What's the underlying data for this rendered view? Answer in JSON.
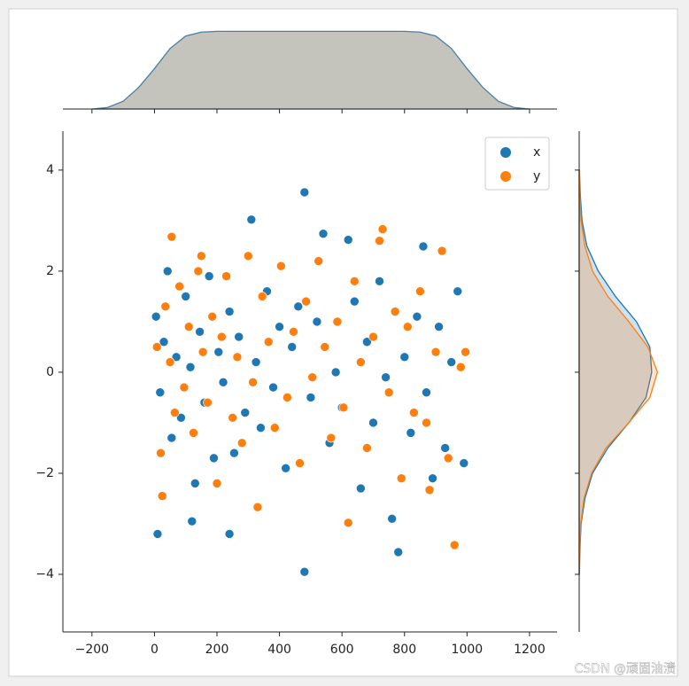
{
  "chart_data": {
    "type": "scatter",
    "series": [
      {
        "name": "x",
        "color": "#1f77b4",
        "x": [
          5,
          18,
          30,
          42,
          55,
          70,
          85,
          100,
          115,
          130,
          145,
          160,
          175,
          190,
          205,
          220,
          240,
          255,
          270,
          290,
          310,
          325,
          340,
          360,
          380,
          400,
          420,
          440,
          460,
          480,
          480,
          500,
          520,
          540,
          560,
          580,
          600,
          620,
          640,
          660,
          680,
          700,
          720,
          740,
          760,
          780,
          800,
          820,
          840,
          860,
          870,
          890,
          910,
          930,
          950,
          970,
          990,
          10,
          120,
          240
        ],
        "values": [
          1.1,
          -0.4,
          0.6,
          2.0,
          -1.3,
          0.3,
          -0.9,
          1.5,
          0.1,
          -2.2,
          0.8,
          -0.6,
          1.9,
          -1.7,
          0.4,
          -0.2,
          1.2,
          -1.6,
          0.7,
          -0.8,
          3.02,
          0.2,
          -1.1,
          1.6,
          -0.3,
          0.9,
          -1.9,
          0.5,
          1.3,
          3.56,
          -3.95,
          -0.5,
          1.0,
          2.74,
          -1.4,
          0.0,
          -0.7,
          2.62,
          1.4,
          -2.3,
          0.6,
          -1.0,
          1.8,
          -0.1,
          -2.9,
          -3.56,
          0.3,
          -1.2,
          1.1,
          2.49,
          -0.4,
          -2.1,
          0.9,
          -1.5,
          0.2,
          1.6,
          -1.8,
          -3.2,
          -2.95,
          -3.2
        ]
      },
      {
        "name": "y",
        "color": "#ff7f0e",
        "x": [
          8,
          20,
          35,
          50,
          55,
          65,
          80,
          95,
          110,
          125,
          140,
          155,
          170,
          185,
          200,
          215,
          230,
          250,
          265,
          280,
          300,
          315,
          330,
          345,
          365,
          385,
          405,
          425,
          445,
          465,
          485,
          505,
          525,
          545,
          565,
          585,
          605,
          620,
          640,
          660,
          680,
          700,
          720,
          730,
          750,
          770,
          790,
          810,
          830,
          850,
          870,
          880,
          900,
          920,
          940,
          960,
          980,
          995,
          25,
          150
        ],
        "values": [
          0.5,
          -1.6,
          1.3,
          0.2,
          2.68,
          -0.8,
          1.7,
          -0.3,
          0.9,
          -1.2,
          2.0,
          0.4,
          -0.6,
          1.1,
          -2.2,
          0.7,
          1.9,
          -0.9,
          0.3,
          -1.4,
          2.3,
          -0.2,
          -2.67,
          1.5,
          0.6,
          -1.1,
          2.1,
          -0.5,
          0.8,
          -1.8,
          1.4,
          -0.1,
          2.2,
          0.5,
          -1.3,
          1.0,
          -0.7,
          -2.98,
          1.8,
          0.2,
          -1.5,
          0.7,
          2.6,
          2.83,
          -0.4,
          1.2,
          -2.1,
          0.9,
          -0.8,
          1.6,
          -1.0,
          -2.33,
          0.4,
          2.4,
          -1.7,
          -3.42,
          0.1,
          0.4,
          -2.45,
          2.3
        ]
      }
    ],
    "xlim": [
      -293,
      1288
    ],
    "ylim": [
      -5.14,
      4.77
    ],
    "xticks": [
      {
        "value": -200,
        "label": "−200"
      },
      0,
      200,
      400,
      600,
      800,
      1000,
      1200
    ],
    "yticks": [
      {
        "value": -4,
        "label": "−4"
      },
      {
        "value": -2,
        "label": "−2"
      },
      0,
      2,
      4
    ],
    "legend": "upper right",
    "top_marginal": {
      "type": "kde",
      "color": "#c4c3bc",
      "edge": "#4a7fa6",
      "x": [
        -200,
        -150,
        -100,
        -50,
        0,
        50,
        100,
        150,
        200,
        500,
        800,
        850,
        900,
        950,
        1000,
        1050,
        1100,
        1150,
        1200
      ],
      "values": [
        0,
        2e-05,
        0.0001,
        0.00028,
        0.00052,
        0.00078,
        0.00094,
        0.00099,
        0.001,
        0.001,
        0.001,
        0.00099,
        0.00094,
        0.00078,
        0.00052,
        0.00028,
        0.0001,
        2e-05,
        0
      ],
      "ylim": [
        0,
        0.00105
      ]
    },
    "right_marginal": {
      "type": "kde",
      "xlim": [
        0,
        0.45
      ],
      "y": [
        -4,
        -3.5,
        -3,
        -2.5,
        -2,
        -1.5,
        -1,
        -0.5,
        0,
        0.5,
        1,
        1.5,
        2,
        2.5,
        3,
        3.5,
        4
      ],
      "series": [
        {
          "color": "#1f77b4",
          "values": [
            0.001,
            0.004,
            0.01,
            0.03,
            0.07,
            0.15,
            0.26,
            0.35,
            0.38,
            0.37,
            0.3,
            0.19,
            0.1,
            0.04,
            0.015,
            0.006,
            0.001
          ]
        },
        {
          "color": "#ff7f0e",
          "values": [
            0,
            0.002,
            0.008,
            0.025,
            0.065,
            0.14,
            0.26,
            0.37,
            0.41,
            0.36,
            0.26,
            0.15,
            0.07,
            0.03,
            0.01,
            0.003,
            0.001
          ]
        }
      ]
    }
  },
  "watermark": "CSDN @顽固油渍"
}
